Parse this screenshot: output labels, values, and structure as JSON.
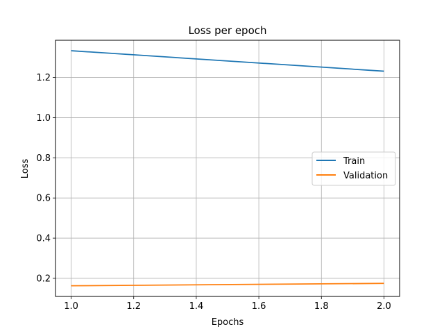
{
  "chart_data": {
    "type": "line",
    "title": "Loss per epoch",
    "xlabel": "Epochs",
    "ylabel": "Loss",
    "xlim": [
      0.95,
      2.05
    ],
    "ylim": [
      0.11,
      1.385
    ],
    "xticks": [
      1.0,
      1.2,
      1.4,
      1.6,
      1.8,
      2.0
    ],
    "yticks": [
      0.2,
      0.4,
      0.6,
      0.8,
      1.0,
      1.2
    ],
    "grid": true,
    "legend_position": "center-right",
    "series": [
      {
        "name": "Train",
        "color": "#1f77b4",
        "x": [
          1.0,
          2.0
        ],
        "y": [
          1.333,
          1.231
        ]
      },
      {
        "name": "Validation",
        "color": "#ff7f0e",
        "x": [
          1.0,
          2.0
        ],
        "y": [
          0.163,
          0.175
        ]
      }
    ]
  }
}
